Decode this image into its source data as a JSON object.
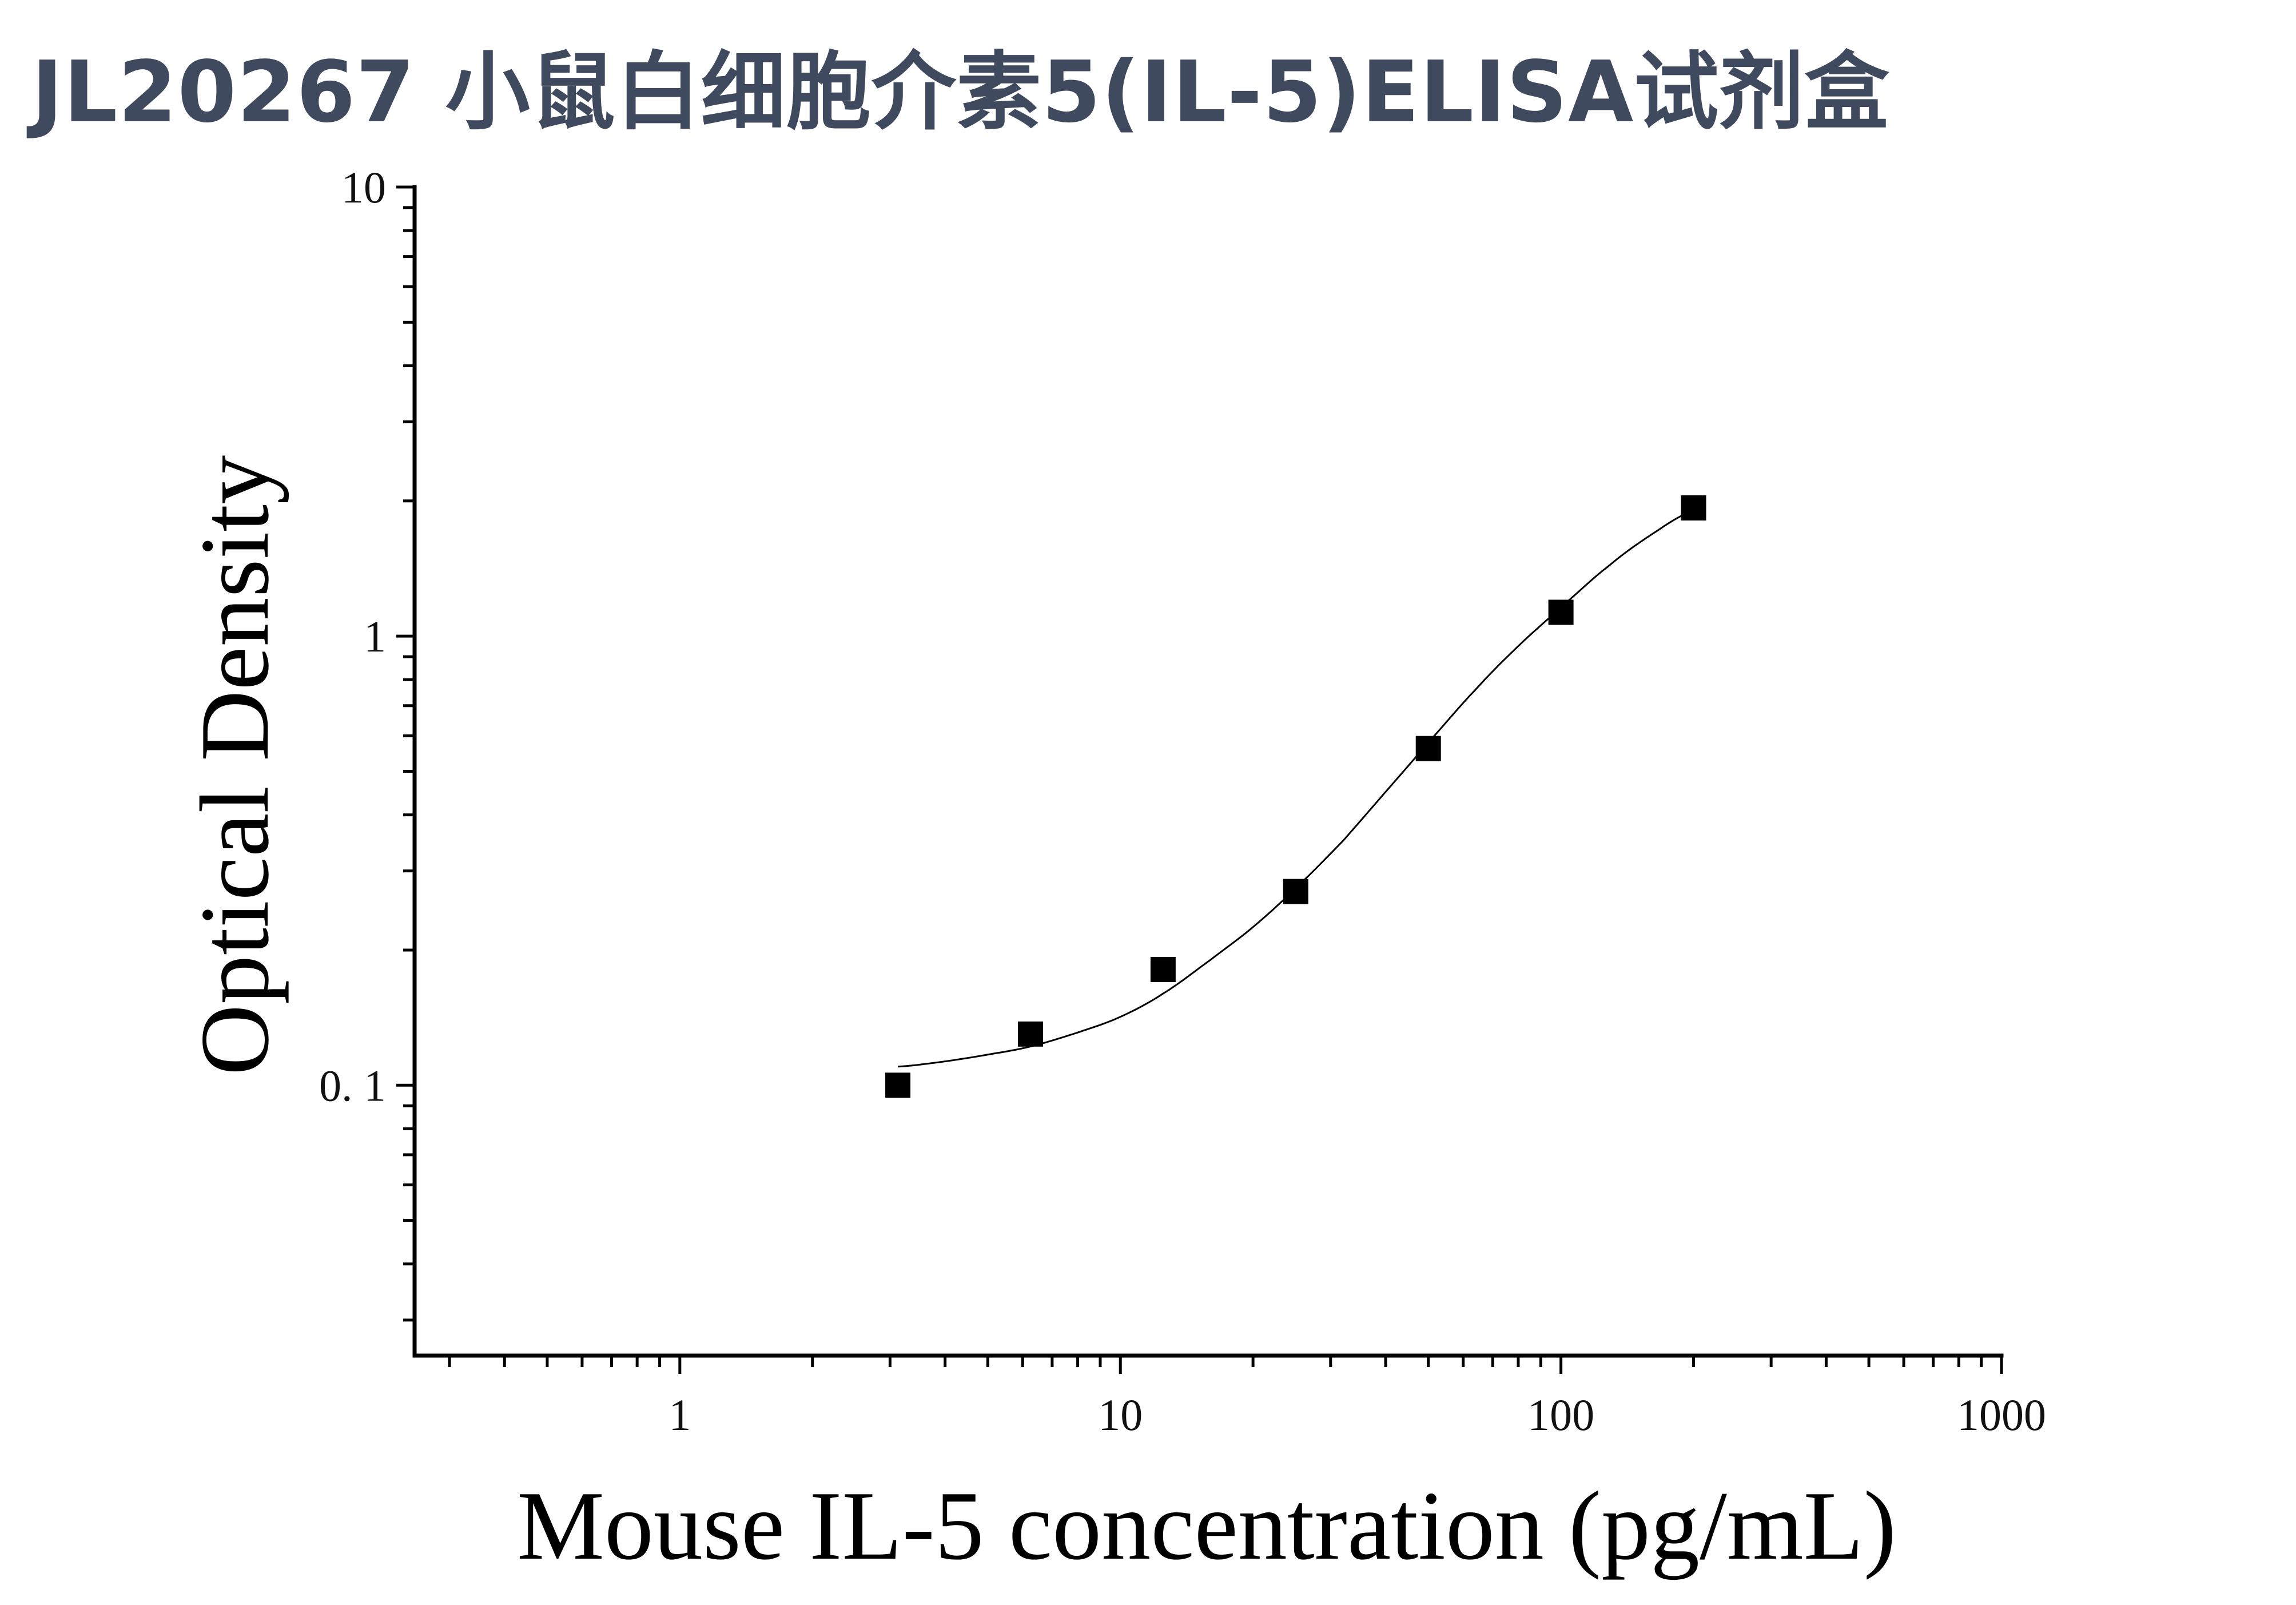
{
  "title": "JL20267 小鼠白细胞介素5(IL-5)ELISA试剂盒",
  "chart_data": {
    "type": "scatter",
    "xlabel": "Mouse IL-5 concentration (pg/mL)",
    "ylabel": "Optical Density",
    "xscale": "log",
    "yscale": "log",
    "xlim": [
      0.25,
      1000
    ],
    "ylim": [
      0.025,
      10
    ],
    "xticks": [
      "1",
      "10",
      "100",
      "1000"
    ],
    "yticks": [
      "0. 1",
      "1",
      "10"
    ],
    "grid": false,
    "legend": "none",
    "marker_color": "#000000",
    "series": [
      {
        "x": [
          3.125,
          6.25,
          12.5,
          25,
          50,
          100,
          200
        ],
        "y": [
          0.1,
          0.13,
          0.181,
          0.27,
          0.562,
          1.13,
          1.93
        ]
      }
    ],
    "fit_curve": {
      "x": [
        3.125,
        4,
        5,
        6.25,
        8,
        10,
        12.5,
        16,
        20,
        25,
        32,
        40,
        50,
        64,
        80,
        100,
        128,
        160,
        200
      ],
      "y": [
        0.11,
        0.113,
        0.117,
        0.122,
        0.131,
        0.142,
        0.16,
        0.19,
        0.225,
        0.275,
        0.35,
        0.45,
        0.58,
        0.76,
        0.95,
        1.16,
        1.43,
        1.68,
        1.9
      ]
    }
  }
}
